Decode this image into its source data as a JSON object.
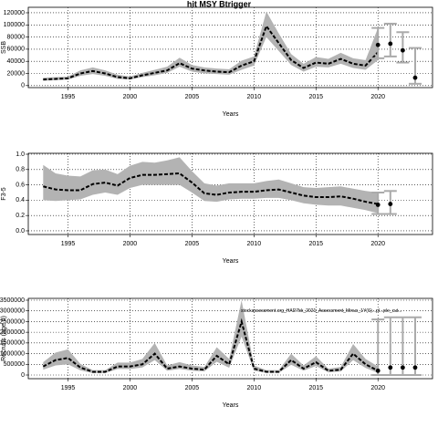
{
  "chart_data": [
    {
      "type": "line",
      "title": "hit MSY Btrigger",
      "ylabel": "SSB",
      "xlabel": "Years",
      "x": [
        1993,
        1994,
        1995,
        1996,
        1997,
        1998,
        1999,
        2000,
        2001,
        2002,
        2003,
        2004,
        2005,
        2006,
        2007,
        2008,
        2009,
        2010,
        2011,
        2012,
        2013,
        2014,
        2015,
        2016,
        2017,
        2018,
        2019,
        2020
      ],
      "values": [
        10000,
        11000,
        12000,
        20000,
        24000,
        20000,
        14000,
        12000,
        17000,
        21000,
        25000,
        37000,
        28000,
        25000,
        23000,
        22000,
        33000,
        40000,
        98000,
        70000,
        42000,
        29000,
        38000,
        36000,
        44000,
        36000,
        33000,
        55000
      ],
      "lower": [
        8000,
        9000,
        10000,
        16000,
        19000,
        16000,
        11000,
        10000,
        14000,
        17000,
        21000,
        31000,
        23000,
        20000,
        19000,
        18000,
        26000,
        33000,
        80000,
        57000,
        34000,
        23000,
        31000,
        30000,
        36000,
        29000,
        26000,
        42000
      ],
      "upper": [
        13000,
        14000,
        15000,
        25000,
        30000,
        25000,
        18000,
        15000,
        21000,
        26000,
        31000,
        46000,
        34000,
        30000,
        28000,
        27000,
        41000,
        48000,
        122000,
        86000,
        52000,
        36000,
        47000,
        44000,
        54000,
        45000,
        42000,
        95000
      ],
      "projection": {
        "x": [
          2020,
          2021,
          2022,
          2023
        ],
        "values": [
          67000,
          69000,
          58000,
          13000
        ],
        "lower": [
          45000,
          48000,
          38000,
          3000
        ],
        "upper": [
          95000,
          102000,
          88000,
          62000
        ]
      },
      "line_color": "#000000",
      "band_color": "#b3b3b3",
      "projection_color": "#aaaaaa",
      "xlim": [
        1991.8,
        2024.4
      ],
      "xticks": [
        1995,
        2000,
        2005,
        2010,
        2015,
        2020
      ],
      "ylim": [
        -3300,
        129000
      ],
      "yticks": [
        0,
        20000,
        40000,
        60000,
        80000,
        100000,
        120000
      ],
      "grid": true
    },
    {
      "type": "line",
      "ylabel": "F3-5",
      "xlabel": "Years",
      "x": [
        1993,
        1994,
        1995,
        1996,
        1997,
        1998,
        1999,
        2000,
        2001,
        2002,
        2003,
        2004,
        2005,
        2006,
        2007,
        2008,
        2009,
        2010,
        2011,
        2012,
        2013,
        2014,
        2015,
        2016,
        2017,
        2018,
        2019,
        2020
      ],
      "values": [
        0.58,
        0.54,
        0.53,
        0.53,
        0.61,
        0.63,
        0.59,
        0.69,
        0.73,
        0.73,
        0.74,
        0.75,
        0.63,
        0.49,
        0.47,
        0.5,
        0.51,
        0.51,
        0.53,
        0.54,
        0.5,
        0.46,
        0.44,
        0.44,
        0.45,
        0.42,
        0.38,
        0.35
      ],
      "lower": [
        0.4,
        0.39,
        0.4,
        0.41,
        0.47,
        0.5,
        0.47,
        0.56,
        0.6,
        0.6,
        0.6,
        0.6,
        0.5,
        0.39,
        0.38,
        0.41,
        0.42,
        0.42,
        0.43,
        0.43,
        0.4,
        0.36,
        0.34,
        0.33,
        0.33,
        0.3,
        0.27,
        0.23
      ],
      "upper": [
        0.86,
        0.75,
        0.72,
        0.71,
        0.79,
        0.8,
        0.74,
        0.85,
        0.9,
        0.89,
        0.92,
        0.96,
        0.78,
        0.62,
        0.59,
        0.62,
        0.62,
        0.62,
        0.65,
        0.67,
        0.62,
        0.57,
        0.56,
        0.57,
        0.58,
        0.55,
        0.52,
        0.5
      ],
      "projection": {
        "x": [
          2020,
          2021
        ],
        "values": [
          0.34,
          0.35
        ],
        "lower": [
          0.22,
          0.22
        ],
        "upper": [
          0.5,
          0.52
        ]
      },
      "line_color": "#000000",
      "band_color": "#b3b3b3",
      "projection_color": "#aaaaaa",
      "xlim": [
        1991.8,
        2024.4
      ],
      "xticks": [
        1995,
        2000,
        2005,
        2010,
        2015,
        2020
      ],
      "ylim": [
        -0.048,
        1.012
      ],
      "yticks": [
        {
          "value": 0,
          "label": "0.0"
        },
        0.2,
        0.4,
        0.6,
        0.8,
        {
          "value": 1,
          "label": "1.0"
        }
      ],
      "grid": true
    },
    {
      "type": "line",
      "ylabel": "Recruits (age 0)",
      "xlabel": "Years",
      "annotation": "stockassessment.org_HAD7bk_2021_Assessment_Minus_1Y(S)...pl...ple_cut...",
      "x": [
        1993,
        1994,
        1995,
        1996,
        1997,
        1998,
        1999,
        2000,
        2001,
        2002,
        2003,
        2004,
        2005,
        2006,
        2007,
        2008,
        2009,
        2010,
        2011,
        2012,
        2013,
        2014,
        2015,
        2016,
        2017,
        2018,
        2019,
        2020
      ],
      "values": [
        400000,
        700000,
        800000,
        350000,
        150000,
        150000,
        400000,
        400000,
        500000,
        1000000,
        300000,
        400000,
        300000,
        250000,
        900000,
        500000,
        2500000,
        300000,
        150000,
        150000,
        700000,
        300000,
        600000,
        200000,
        250000,
        1000000,
        500000,
        200000
      ],
      "lower": [
        250000,
        450000,
        500000,
        220000,
        90000,
        90000,
        280000,
        280000,
        350000,
        700000,
        200000,
        280000,
        200000,
        170000,
        620000,
        340000,
        1800000,
        200000,
        100000,
        100000,
        480000,
        200000,
        420000,
        130000,
        170000,
        700000,
        330000,
        100000
      ],
      "upper": [
        600000,
        1050000,
        1200000,
        520000,
        230000,
        230000,
        580000,
        580000,
        750000,
        1500000,
        450000,
        600000,
        450000,
        380000,
        1300000,
        750000,
        3500000,
        450000,
        230000,
        230000,
        1000000,
        450000,
        880000,
        300000,
        380000,
        1450000,
        750000,
        400000
      ],
      "projection": {
        "x": [
          2020,
          2021,
          2022,
          2023
        ],
        "values": [
          200000,
          350000,
          350000,
          350000
        ],
        "lower": [
          0,
          0,
          0,
          0
        ],
        "upper": [
          2600000,
          2700000,
          2700000,
          2700000
        ]
      },
      "line_color": "#000000",
      "band_color": "#b3b3b3",
      "projection_color": "#aaaaaa",
      "xlim": [
        1991.8,
        2024.4
      ],
      "xticks": [
        1995,
        2000,
        2005,
        2010,
        2015,
        2020
      ],
      "ylim": [
        -171000,
        3585000
      ],
      "yticks": [
        0,
        500000,
        1000000,
        1500000,
        2000000,
        2500000,
        3000000,
        3500000
      ],
      "grid": true
    }
  ]
}
